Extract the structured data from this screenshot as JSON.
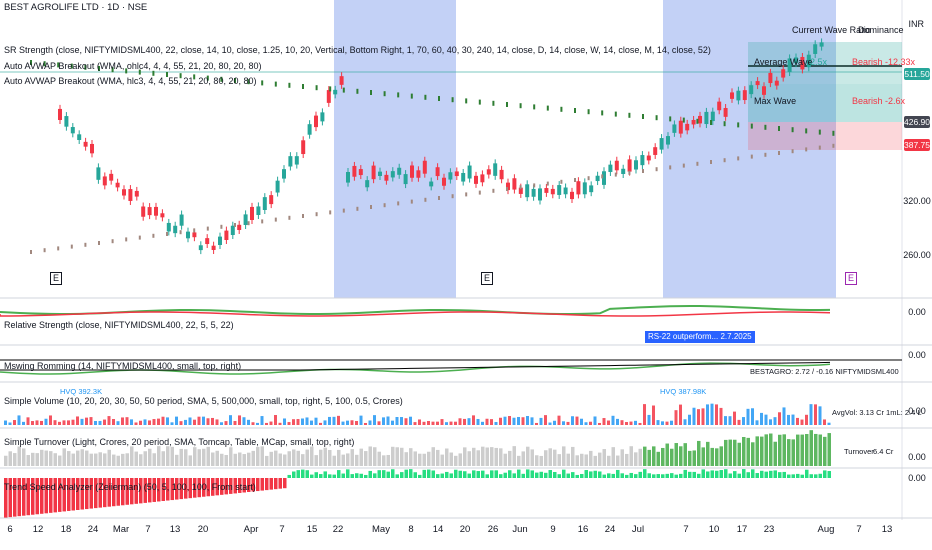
{
  "header": {
    "title": "BEST AGROLIFE LTD · 1D · NSE",
    "currency": "INR",
    "indicators": [
      "SR Strength (close, NIFTYMIDSML400, 22, close, 14, 10, close, 1.25, 10, 20, Vertical, Bottom Right, 1, 70, 60, 40, 30, 240, 14, close, D, 14, close, W, 14, close, M, 14, close, 52)",
      "Auto AVWAP Breakout (WMA, ohlc4, 4, 4, 55, 21, 20, 80, 20, 80)",
      "Auto AVWAP Breakout (WMA, hlc3, 4, 4, 55, 21, 20, 80, 20, 80)"
    ]
  },
  "wave_table": {
    "col1": "Current Wave Ratio",
    "col2": "Dominance",
    "row1_label": "Average Wave",
    "row1_value": "2.5x",
    "row1_dom": "Bearish -12.33x",
    "row2_label": "Max Wave",
    "row2_dom": "Bearish -2.6x"
  },
  "price_axis": {
    "labels": [
      "320.00",
      "260.00"
    ],
    "tags": [
      {
        "text": "511.50",
        "color": "#26a69a"
      },
      {
        "text": "426.90",
        "color": "#434651"
      },
      {
        "text": "387.75",
        "color": "#f23645"
      }
    ]
  },
  "earnings_markers": [
    "E",
    "E",
    "E"
  ],
  "panes": {
    "rs_label": "Relative Strength (close, NIFTYMIDSML400, 22, 5, 5, 22)",
    "rs_value": "0.00",
    "rs_callout": "RS-22 outperform... 2.7.2025",
    "mansfield_label": "Mswing Romming (14, NIFTYMIDSML400, small, top, right)",
    "mansfield_value": "0.00",
    "mansfield_note": "BESTAGRO: 2.72 / -0.16  NIFTYMIDSML400",
    "volume_label": "Simple Volume (10, 20, 20, 30, 50, 50 period, SMA, 5, 500,000, small, top, right, 5, 100, 0.5, Crores)",
    "volume_value": "0.00",
    "volume_hvq1": "HVQ 392.3K",
    "volume_hvq2": "HVQ 387.98K",
    "volume_avg": "AvgVol: 3.13 Cr   1mL: 2.4 L",
    "turnover_label": "Simple Turnover (Light, Crores, 20 period, SMA, Tomcap, Table, MCap, small, top, right)",
    "turnover_value": "0.00",
    "turnover_table_label": "Turnover",
    "turnover_table_value": "6.4 Cr",
    "trend_label": "Trend Speed Analyzer (Zeiierman) (50, 5, 100, 100, From start)",
    "trend_value": "0.00"
  },
  "x_axis": {
    "dates": [
      "6",
      "12",
      "18",
      "24",
      "Mar",
      "7",
      "13",
      "20",
      "Apr",
      "7",
      "15",
      "22",
      "May",
      "8",
      "14",
      "20",
      "26",
      "Jun",
      "9",
      "16",
      "24",
      "Jul",
      "7",
      "10",
      "17",
      "23",
      "Aug",
      "7",
      "13"
    ]
  },
  "colors": {
    "up": "#26a69a",
    "down": "#f23645",
    "highlight": "#b8c9f5",
    "ma_green": "#4caf50",
    "ma_red": "#f23645"
  }
}
